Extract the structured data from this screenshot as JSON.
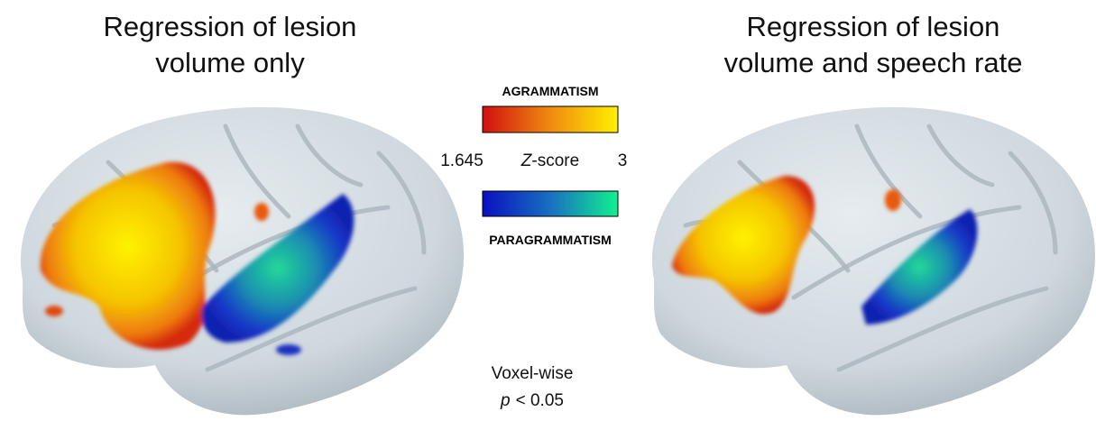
{
  "left_panel": {
    "title_lines": [
      "Regression of lesion",
      "volume only"
    ]
  },
  "right_panel": {
    "title_lines": [
      "Regression of lesion",
      "volume and speech rate"
    ]
  },
  "legend": {
    "top_label": "AGRAMMATISM",
    "min": 1.645,
    "axis_italic": "Z",
    "axis_rest": "-score",
    "max": 3,
    "bottom_label": "PARAGRAMMATISM"
  },
  "threshold": {
    "line1": "Voxel-wise",
    "italic": "p",
    "rest": "< 0.05"
  }
}
